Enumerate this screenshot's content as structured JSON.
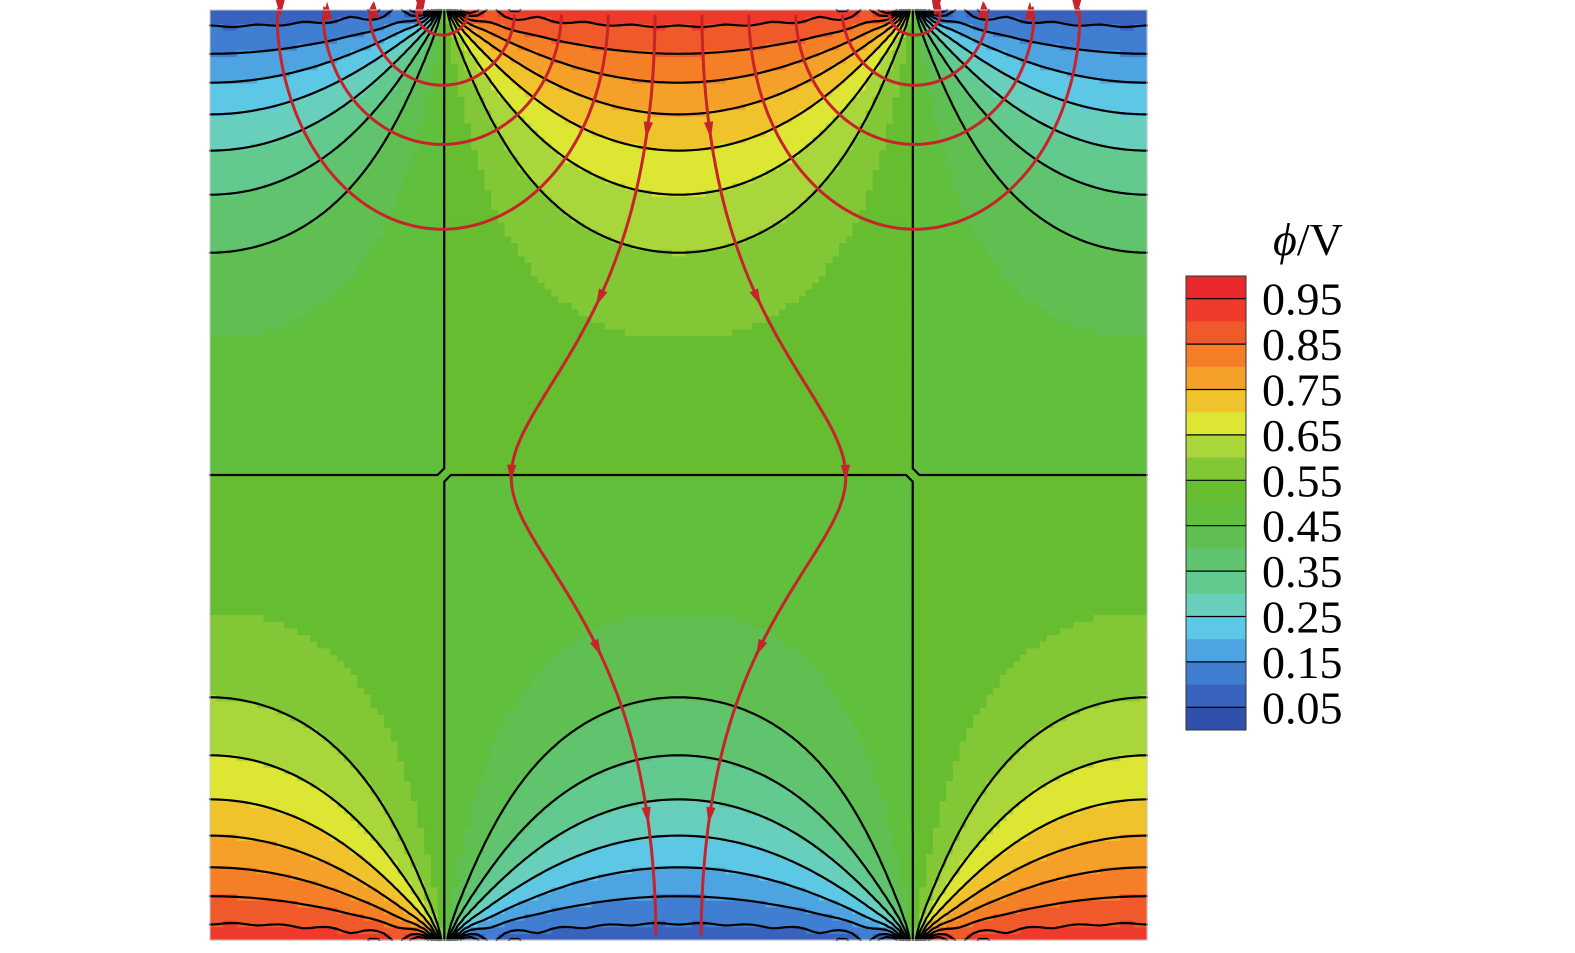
{
  "chart_data": {
    "type": "heatmap",
    "title": "",
    "xlabel": "",
    "ylabel": "",
    "colorbar": {
      "symbol": "ϕ",
      "unit": "/V",
      "ticks": [
        "0.95",
        "0.85",
        "0.75",
        "0.65",
        "0.55",
        "0.45",
        "0.35",
        "0.25",
        "0.15",
        "0.05"
      ],
      "range": [
        0,
        1
      ],
      "levels": [
        {
          "value": 0.975,
          "color": "#e8282a"
        },
        {
          "value": 0.925,
          "color": "#ee3a2b"
        },
        {
          "value": 0.875,
          "color": "#f05a2a"
        },
        {
          "value": 0.825,
          "color": "#f57f27"
        },
        {
          "value": 0.775,
          "color": "#f5a129"
        },
        {
          "value": 0.725,
          "color": "#f0c32c"
        },
        {
          "value": 0.675,
          "color": "#dde733"
        },
        {
          "value": 0.625,
          "color": "#a9d63a"
        },
        {
          "value": 0.575,
          "color": "#82c836"
        },
        {
          "value": 0.525,
          "color": "#66bd30"
        },
        {
          "value": 0.475,
          "color": "#60bf3c"
        },
        {
          "value": 0.425,
          "color": "#5fbf50"
        },
        {
          "value": 0.375,
          "color": "#60c36e"
        },
        {
          "value": 0.325,
          "color": "#62c98f"
        },
        {
          "value": 0.275,
          "color": "#69cfbd"
        },
        {
          "value": 0.225,
          "color": "#5dc8e6"
        },
        {
          "value": 0.175,
          "color": "#4da4e0"
        },
        {
          "value": 0.125,
          "color": "#3f7ed1"
        },
        {
          "value": 0.075,
          "color": "#3862bd"
        },
        {
          "value": 0.025,
          "color": "#3150ad"
        }
      ]
    },
    "field": {
      "quantity": "electric potential ϕ",
      "high_electrode": "top-center",
      "low_electrode": "bottom-center",
      "contours_shown": true,
      "field_lines_shown": true,
      "field_line_color": "#c7232b",
      "contour_color": "#000000"
    }
  }
}
